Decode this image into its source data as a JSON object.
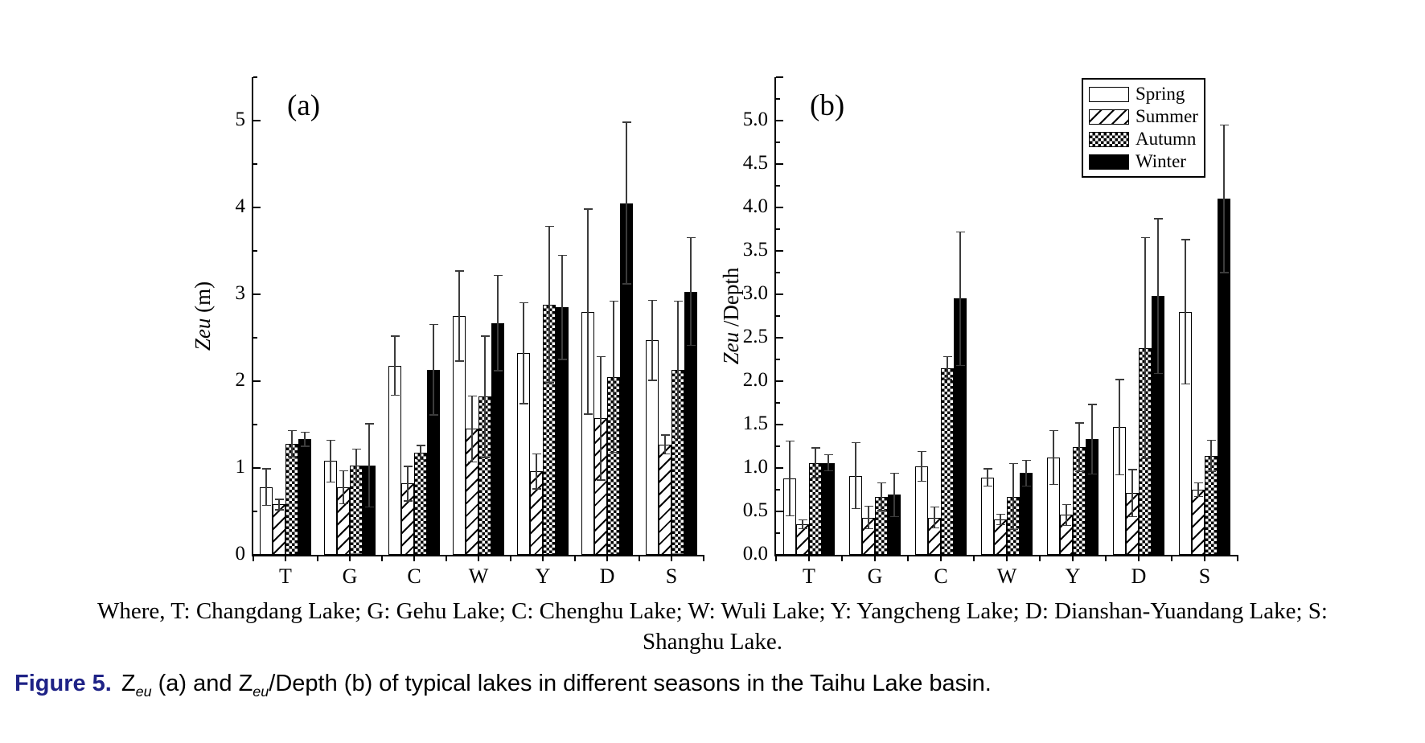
{
  "page": {
    "background": "#ffffff"
  },
  "figure": {
    "where_line1": "Where, T: Changdang Lake; G: Gehu Lake; C: Chenghu Lake; W: Wuli Lake; Y: Yangcheng Lake; D: Dianshan-Yuandang Lake; S:",
    "where_line2": "Shanghu Lake."
  },
  "caption": {
    "label": "Figure 5.",
    "color": "#1e2286",
    "segments": [
      {
        "text": "Z"
      },
      {
        "text": "eu",
        "sub": true
      },
      {
        "text": " (a) and Z"
      },
      {
        "text": "eu",
        "sub": true
      },
      {
        "text": "/Depth (b) of typical lakes in different seasons in the Taihu Lake basin."
      }
    ]
  },
  "legend": {
    "position": "top-right-of-panel-b",
    "items": [
      {
        "label": "Spring",
        "pattern": "plain"
      },
      {
        "label": "Summer",
        "pattern": "hatch"
      },
      {
        "label": "Autumn",
        "pattern": "checker"
      },
      {
        "label": "Winter",
        "pattern": "solid"
      }
    ]
  },
  "chart_data": [
    {
      "type": "bar",
      "panel": "(a)",
      "ylabel": "Zeu (m)",
      "ylabel_italic": "Zeu",
      "ylabel_rest": " (m)",
      "categories": [
        "T",
        "G",
        "C",
        "W",
        "Y",
        "D",
        "S"
      ],
      "ylim": [
        0,
        5.5
      ],
      "ytick_step": 1,
      "ytick_minor": 0.5,
      "ytick_labels": [
        "0",
        "1",
        "2",
        "3",
        "4",
        "5"
      ],
      "grid": false,
      "series": [
        {
          "name": "Spring",
          "values": [
            0.78,
            1.08,
            2.18,
            2.75,
            2.32,
            2.8,
            2.47
          ],
          "errors": [
            0.21,
            0.24,
            0.34,
            0.52,
            0.58,
            1.18,
            0.46
          ]
        },
        {
          "name": "Summer",
          "values": [
            0.58,
            0.78,
            0.82,
            1.45,
            0.96,
            1.57,
            1.27
          ],
          "errors": [
            0.06,
            0.19,
            0.2,
            0.38,
            0.2,
            0.71,
            0.11
          ]
        },
        {
          "name": "Autumn",
          "values": [
            1.28,
            1.03,
            1.18,
            1.82,
            2.88,
            2.05,
            2.13
          ],
          "errors": [
            0.15,
            0.19,
            0.08,
            0.7,
            0.9,
            0.87,
            0.79
          ]
        },
        {
          "name": "Winter",
          "values": [
            1.33,
            1.03,
            2.13,
            2.67,
            2.85,
            4.05,
            3.03
          ],
          "errors": [
            0.08,
            0.48,
            0.52,
            0.55,
            0.6,
            0.93,
            0.62
          ]
        }
      ]
    },
    {
      "type": "bar",
      "panel": "(b)",
      "ylabel": "Zeu /Depth",
      "ylabel_italic": "Zeu",
      "ylabel_rest": " /Depth",
      "categories": [
        "T",
        "G",
        "C",
        "W",
        "Y",
        "D",
        "S"
      ],
      "ylim": [
        0,
        5.5
      ],
      "ytick_step": 0.5,
      "ytick_minor": 0.25,
      "ytick_labels": [
        "0.0",
        "0.5",
        "1.0",
        "1.5",
        "2.0",
        "2.5",
        "3.0",
        "3.5",
        "4.0",
        "4.5",
        "5.0"
      ],
      "grid": false,
      "series": [
        {
          "name": "Spring",
          "values": [
            0.88,
            0.91,
            1.02,
            0.89,
            1.12,
            1.47,
            2.8
          ],
          "errors": [
            0.43,
            0.38,
            0.17,
            0.1,
            0.31,
            0.55,
            0.83
          ]
        },
        {
          "name": "Summer",
          "values": [
            0.35,
            0.43,
            0.43,
            0.41,
            0.46,
            0.71,
            0.75
          ],
          "errors": [
            0.05,
            0.13,
            0.12,
            0.06,
            0.12,
            0.27,
            0.08
          ]
        },
        {
          "name": "Autumn",
          "values": [
            1.06,
            0.67,
            2.15,
            0.67,
            1.24,
            2.38,
            1.14
          ],
          "errors": [
            0.17,
            0.16,
            0.13,
            0.38,
            0.28,
            1.27,
            0.18
          ]
        },
        {
          "name": "Winter",
          "values": [
            1.06,
            0.69,
            2.95,
            0.94,
            1.33,
            2.98,
            4.1
          ],
          "errors": [
            0.09,
            0.25,
            0.77,
            0.15,
            0.4,
            0.89,
            0.85
          ]
        }
      ]
    }
  ]
}
